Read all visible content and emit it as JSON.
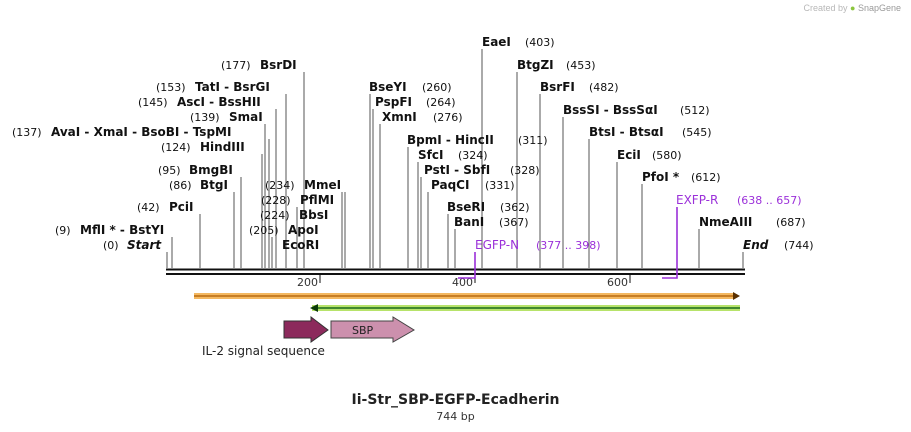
{
  "credit": {
    "prefix": "Created by",
    "brand": "SnapGene"
  },
  "title": "Ii-Str_SBP-EGFP-Ecadherin",
  "length_label": "744 bp",
  "ticks": [
    "200",
    "400",
    "600"
  ],
  "sites": [
    {
      "label": "Start",
      "pos": "(0)"
    },
    {
      "label": "MflI * - BstYI",
      "pos": "(9)"
    },
    {
      "label": "PciI",
      "pos": "(42)"
    },
    {
      "label": "BtgI",
      "pos": "(86)"
    },
    {
      "label": "BmgBI",
      "pos": "(95)"
    },
    {
      "label": "HindIII",
      "pos": "(124)"
    },
    {
      "label": "AvaI - XmaI - BsoBI - TspMI",
      "pos": "(137)"
    },
    {
      "label": "SmaI",
      "pos": "(139)"
    },
    {
      "label": "AscI - BssHII",
      "pos": "(145)"
    },
    {
      "label": "TatI - BsrGI",
      "pos": "(153)"
    },
    {
      "label": "BsrDI",
      "pos": "(177)"
    },
    {
      "label": "EcoRI",
      "pos": "(205)"
    },
    {
      "label": "ApoI",
      "pos": "(205)"
    },
    {
      "label": "BbsI",
      "pos": "(224)"
    },
    {
      "label": "PflMI",
      "pos": "(228)"
    },
    {
      "label": "MmeI",
      "pos": "(234)"
    },
    {
      "label": "BseYI",
      "pos": "(260)"
    },
    {
      "label": "PspFI",
      "pos": "(264)"
    },
    {
      "label": "XmnI",
      "pos": "(276)"
    },
    {
      "label": "BpmI - HincII",
      "pos": "(311)"
    },
    {
      "label": "SfcI",
      "pos": "(324)"
    },
    {
      "label": "PstI - SbfI",
      "pos": "(328)"
    },
    {
      "label": "PaqCI",
      "pos": "(331)"
    },
    {
      "label": "BseRI",
      "pos": "(362)"
    },
    {
      "label": "BanI",
      "pos": "(367)"
    },
    {
      "label": "EaeI",
      "pos": "(403)"
    },
    {
      "label": "BtgZI",
      "pos": "(453)"
    },
    {
      "label": "BsrFI",
      "pos": "(482)"
    },
    {
      "label": "BssSI - BssSαI",
      "pos": "(512)"
    },
    {
      "label": "BtsI - BtsαI",
      "pos": "(545)"
    },
    {
      "label": "EciI",
      "pos": "(580)"
    },
    {
      "label": "PfoI *",
      "pos": "(612)"
    },
    {
      "label": "NmeAIII",
      "pos": "(687)"
    },
    {
      "label": "End",
      "pos": "(744)"
    }
  ],
  "primers": [
    {
      "label": "EGFP-N",
      "range": "(377 .. 398)"
    },
    {
      "label": "EXFP-R",
      "range": "(638 .. 657)"
    }
  ],
  "features": [
    {
      "label": "IL-2 signal sequence"
    },
    {
      "label": "SBP"
    }
  ],
  "colors": {
    "primer": "#9b30d9",
    "il2": "#8c2a5c",
    "sbp": "#c98aa8",
    "orange": "#f0a030",
    "green": "#2ea82e"
  }
}
